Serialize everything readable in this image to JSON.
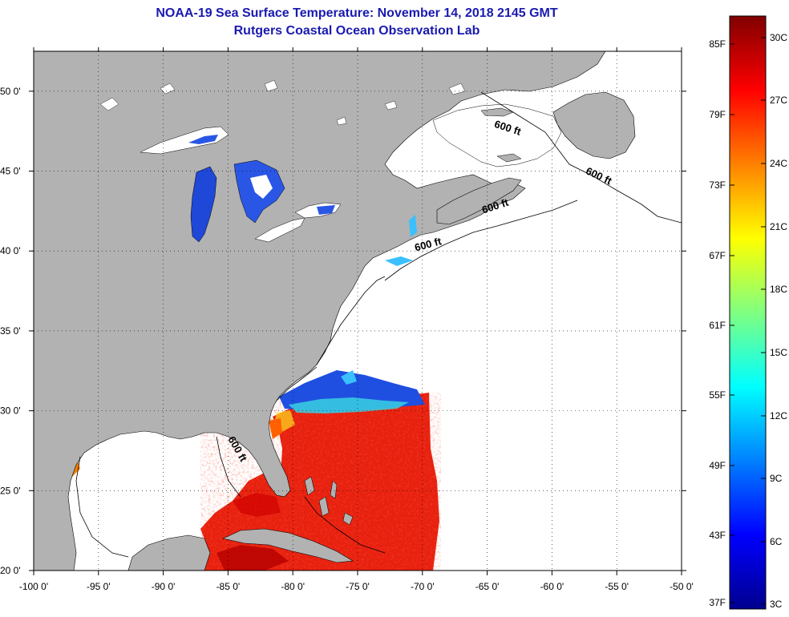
{
  "title_line1": "NOAA-19 Sea Surface Temperature:  November 14, 2018 2145 GMT",
  "title_line2": "Rutgers Coastal Ocean Observation Lab",
  "colors": {
    "land": "#b2b2b2",
    "ocean_no_data": "#ffffff",
    "title": "#1a1ab0",
    "grid": "#000000"
  },
  "map": {
    "lon_ticks": [
      "-100 0'",
      "-95 0'",
      "-90 0'",
      "-85 0'",
      "-80 0'",
      "-75 0'",
      "-70 0'",
      "-65 0'",
      "-60 0'",
      "-55 0'",
      "-50 0'"
    ],
    "lat_ticks": [
      "50 0'",
      "45 0'",
      "40 0'",
      "35 0'",
      "30 0'",
      "25 0'",
      "20 0'"
    ],
    "lon_range": [
      -100,
      -50
    ],
    "lat_range": [
      20,
      52.5
    ],
    "isobath_label": "600 ft",
    "isobath_labels": [
      {
        "text": "600 ft",
        "lon": -63.5,
        "lat": 47.5
      },
      {
        "text": "600 ft",
        "lon": -56.5,
        "lat": 44.5
      },
      {
        "text": "600 ft",
        "lon": -64.3,
        "lat": 42.6
      },
      {
        "text": "600 ft",
        "lon": -69.5,
        "lat": 40.2
      },
      {
        "text": "600 ft",
        "lon": -84.5,
        "lat": 27.5
      }
    ]
  },
  "colorbar": {
    "f_labels": [
      "85F",
      "79F",
      "73F",
      "67F",
      "61F",
      "55F",
      "49F",
      "43F",
      "37F"
    ],
    "c_labels": [
      "30C",
      "27C",
      "24C",
      "21C",
      "18C",
      "15C",
      "12C",
      "9C",
      "6C",
      "3C"
    ],
    "colormap": [
      "#00008f",
      "#0000ff",
      "#0080ff",
      "#00ffff",
      "#80ff80",
      "#ffff00",
      "#ff8000",
      "#ff0000",
      "#800000"
    ]
  }
}
